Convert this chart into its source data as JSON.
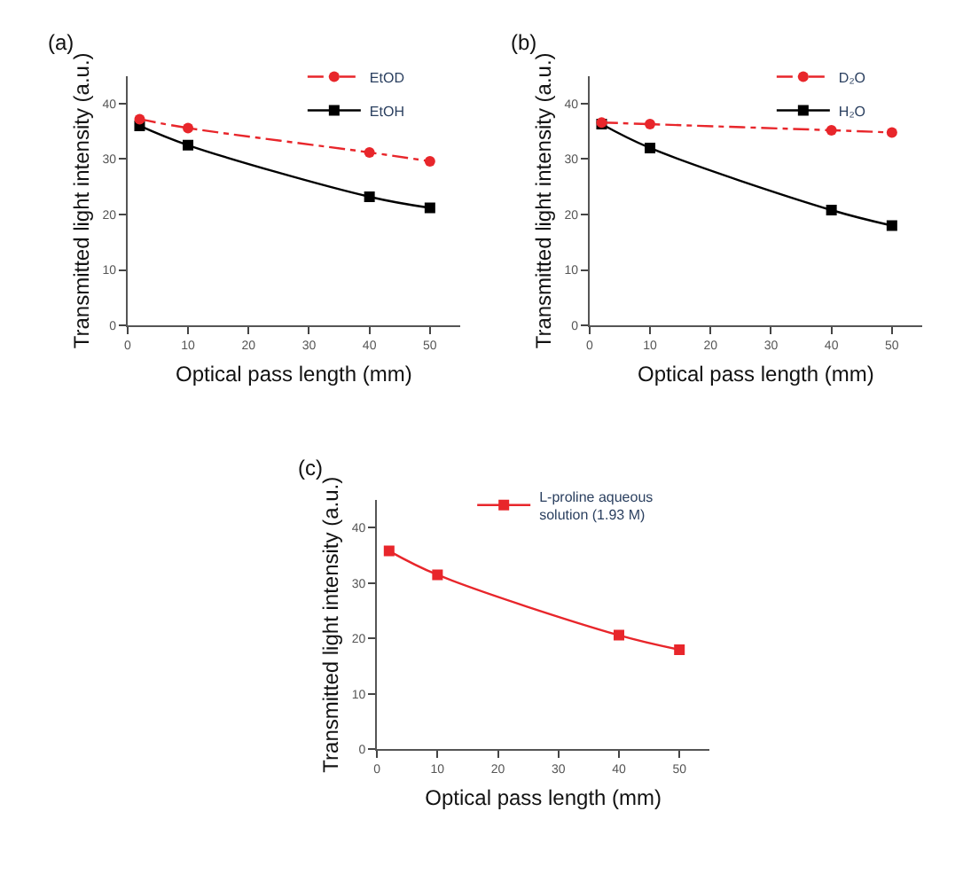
{
  "chart_data": [
    {
      "type": "line",
      "title": "(a)",
      "xlabel": "Optical pass length (mm)",
      "ylabel": "Transmitted light intensity (a.u.)",
      "x": [
        2,
        10,
        40,
        50
      ],
      "xlim": [
        0,
        55
      ],
      "xticks": [
        0,
        10,
        20,
        30,
        40,
        50
      ],
      "ylim": [
        0,
        45
      ],
      "yticks": [
        0,
        10,
        20,
        30,
        40
      ],
      "grid": false,
      "legend": "top right",
      "series": [
        {
          "name": "EtOD",
          "color": "#e8262b",
          "values": [
            37.2,
            35.6,
            31.2,
            29.6
          ],
          "marker": "circle",
          "line_style": "dashed"
        },
        {
          "name": "EtOH",
          "color": "#000000",
          "values": [
            36.0,
            32.5,
            23.2,
            21.2
          ],
          "marker": "square",
          "line_style": "solid"
        }
      ]
    },
    {
      "type": "line",
      "title": "(b)",
      "xlabel": "Optical pass length (mm)",
      "ylabel": "Transmitted light intensity (a.u.)",
      "x": [
        2,
        10,
        40,
        50
      ],
      "xlim": [
        0,
        55
      ],
      "xticks": [
        0,
        10,
        20,
        30,
        40,
        50
      ],
      "ylim": [
        0,
        45
      ],
      "yticks": [
        0,
        10,
        20,
        30,
        40
      ],
      "grid": false,
      "legend": "top right",
      "series": [
        {
          "name": "D₂O",
          "color": "#e8262b",
          "values": [
            36.6,
            36.3,
            35.2,
            34.8
          ],
          "marker": "circle",
          "line_style": "dashed"
        },
        {
          "name": "H₂O",
          "color": "#000000",
          "values": [
            36.3,
            32.0,
            20.8,
            18.0
          ],
          "marker": "square",
          "line_style": "solid"
        }
      ]
    },
    {
      "type": "line",
      "title": "(c)",
      "xlabel": "Optical pass length (mm)",
      "ylabel": "Transmitted light intensity (a.u.)",
      "x": [
        2,
        10,
        40,
        50
      ],
      "xlim": [
        0,
        55
      ],
      "xticks": [
        0,
        10,
        20,
        30,
        40,
        50
      ],
      "ylim": [
        0,
        45
      ],
      "yticks": [
        0,
        10,
        20,
        30,
        40
      ],
      "grid": false,
      "legend": "top right",
      "series": [
        {
          "name": "L-proline aqueous solution (1.93 M)",
          "color": "#e8262b",
          "values": [
            35.8,
            31.5,
            20.6,
            18.0
          ],
          "marker": "square",
          "line_style": "solid"
        }
      ]
    }
  ]
}
